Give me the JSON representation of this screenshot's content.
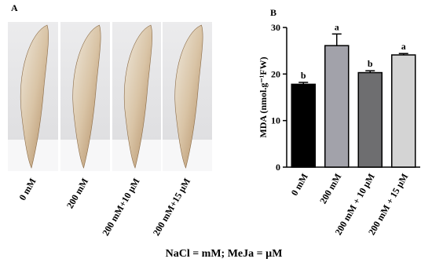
{
  "panel_a": {
    "label": "A",
    "images": [
      "0 mM",
      "200 mM",
      "200 mM+10 µM",
      "200 mM+15 µM"
    ]
  },
  "chart_data": {
    "type": "bar",
    "panel_label": "B",
    "y_label": "MDA (nmol.g⁻¹FW)",
    "categories": [
      "0 mM",
      "200 mM",
      "200 mM + 10 µM",
      "200 mM + 15 µM"
    ],
    "values": [
      17.8,
      26.1,
      20.3,
      24.1
    ],
    "errors": [
      0.4,
      2.5,
      0.4,
      0.3
    ],
    "colors": [
      "#000000",
      "#a2a2aa",
      "#6e6e70",
      "#d4d4d4"
    ],
    "annotations": [
      "b",
      "a",
      "b",
      "a"
    ],
    "ylim": [
      0,
      30
    ],
    "yticks": [
      0,
      10,
      20,
      30
    ]
  },
  "footnote": "NaCl  = mM;  MeJa = µM"
}
